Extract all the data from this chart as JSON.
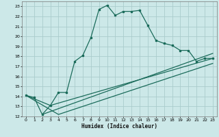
{
  "xlabel": "Humidex (Indice chaleur)",
  "bg_color": "#cce8e8",
  "grid_color": "#aacccc",
  "line_color": "#1a6b5a",
  "xlim": [
    -0.5,
    23.5
  ],
  "ylim": [
    12,
    23.5
  ],
  "xticks": [
    0,
    1,
    2,
    3,
    4,
    5,
    6,
    7,
    8,
    9,
    10,
    11,
    12,
    13,
    14,
    15,
    16,
    17,
    18,
    19,
    20,
    21,
    22,
    23
  ],
  "yticks": [
    12,
    13,
    14,
    15,
    16,
    17,
    18,
    19,
    20,
    21,
    22,
    23
  ],
  "series1_x": [
    0,
    1,
    2,
    3,
    4,
    5,
    6,
    7,
    8,
    9,
    10,
    11,
    12,
    13,
    14,
    15,
    16,
    17,
    18,
    19,
    20,
    21,
    22,
    23
  ],
  "series1_y": [
    14.1,
    13.9,
    12.2,
    13.1,
    14.4,
    14.4,
    17.5,
    18.1,
    19.9,
    22.7,
    23.1,
    22.1,
    22.5,
    22.5,
    22.6,
    21.1,
    19.6,
    19.3,
    19.1,
    18.6,
    18.6,
    17.5,
    17.8,
    17.8
  ],
  "line2_x": [
    0,
    4,
    23
  ],
  "line2_y": [
    14.1,
    12.2,
    17.3
  ],
  "line3_x": [
    0,
    3,
    23
  ],
  "line3_y": [
    14.1,
    13.1,
    17.8
  ],
  "line4_x": [
    2,
    23
  ],
  "line4_y": [
    12.2,
    18.3
  ]
}
